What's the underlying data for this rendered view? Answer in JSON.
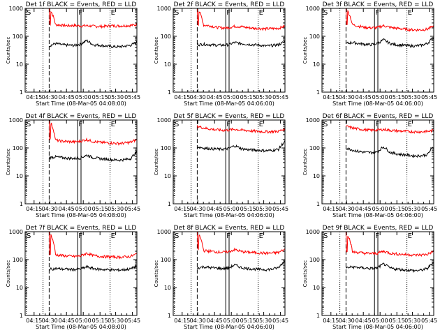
{
  "chart_data": [
    {
      "type": "line",
      "title": "Det 1f BLACK = Events, RED = LLD",
      "xlabel": "Start Time (08-Mar-05 04:08:00)",
      "ylabel": "Counts/sec",
      "yscale": "log",
      "ylim": [
        1,
        1000
      ],
      "x_ticks": [
        "04:15",
        "04:30",
        "04:45",
        "05:00",
        "05:15",
        "05:30",
        "05:45"
      ],
      "y_ticks": [
        "1",
        "10",
        "100",
        "1000"
      ],
      "markers": [
        "S",
        "F",
        "E"
      ],
      "series": [
        {
          "color": "#ff0000",
          "values": [
            1000,
            260,
            250,
            240,
            245,
            235,
            240,
            230,
            225,
            230,
            240,
            235,
            240,
            245,
            260
          ]
        },
        {
          "color": "#000000",
          "values": [
            45,
            55,
            50,
            48,
            47,
            52,
            70,
            50,
            48,
            45,
            43,
            42,
            44,
            48,
            60
          ]
        }
      ]
    },
    {
      "type": "line",
      "title": "Det 2f BLACK = Events, RED = LLD",
      "xlabel": "Start Time (08-Mar-05 04:06:00)",
      "ylabel": "Counts/sec",
      "yscale": "log",
      "ylim": [
        1,
        1000
      ],
      "x_ticks": [
        "04:15",
        "04:30",
        "04:45",
        "05:00",
        "05:15",
        "05:30",
        "05:45"
      ],
      "y_ticks": [
        "1",
        "10",
        "100",
        "1000"
      ],
      "markers": [
        "S",
        "F",
        "E"
      ],
      "series": [
        {
          "color": "#ff0000",
          "values": [
            1000,
            250,
            240,
            210,
            200,
            205,
            230,
            220,
            205,
            195,
            190,
            185,
            190,
            195,
            230
          ]
        },
        {
          "color": "#000000",
          "values": [
            50,
            52,
            50,
            48,
            48,
            50,
            60,
            55,
            52,
            50,
            48,
            45,
            47,
            50,
            65
          ]
        }
      ]
    },
    {
      "type": "line",
      "title": "Det 3f BLACK = Events, RED = LLD",
      "xlabel": "Start Time (08-Mar-05 04:06:00)",
      "ylabel": "Counts/sec",
      "yscale": "log",
      "ylim": [
        1,
        1000
      ],
      "x_ticks": [
        "04:15",
        "04:30",
        "04:45",
        "05:00",
        "05:15",
        "05:30",
        "05:45"
      ],
      "y_ticks": [
        "1",
        "10",
        "100",
        "1000"
      ],
      "markers": [
        "S",
        "F",
        "E"
      ],
      "series": [
        {
          "color": "#ff0000",
          "values": [
            1000,
            260,
            230,
            210,
            200,
            205,
            240,
            210,
            195,
            185,
            175,
            170,
            170,
            180,
            230
          ]
        },
        {
          "color": "#000000",
          "values": [
            55,
            60,
            55,
            52,
            50,
            55,
            75,
            55,
            50,
            48,
            46,
            45,
            48,
            55,
            90
          ]
        }
      ]
    },
    {
      "type": "line",
      "title": "Det 4f BLACK = Events, RED = LLD",
      "xlabel": "Start Time (08-Mar-05 04:08:00)",
      "ylabel": "Counts/sec",
      "yscale": "log",
      "ylim": [
        1,
        1000
      ],
      "x_ticks": [
        "04:15",
        "04:30",
        "04:45",
        "05:00",
        "05:15",
        "05:30",
        "05:45"
      ],
      "y_ticks": [
        "1",
        "10",
        "100",
        "1000"
      ],
      "markers": [
        "S",
        "F",
        "E"
      ],
      "series": [
        {
          "color": "#ff0000",
          "values": [
            1000,
            190,
            175,
            170,
            165,
            175,
            200,
            170,
            160,
            155,
            150,
            145,
            150,
            160,
            200
          ]
        },
        {
          "color": "#000000",
          "values": [
            45,
            48,
            45,
            43,
            42,
            44,
            55,
            45,
            42,
            40,
            38,
            37,
            38,
            42,
            70
          ]
        }
      ]
    },
    {
      "type": "line",
      "title": "Det 5f BLACK = Events, RED = LLD",
      "xlabel": "Start Time (08-Mar-05 04:06:00)",
      "ylabel": "Counts/sec",
      "yscale": "log",
      "ylim": [
        1,
        1000
      ],
      "x_ticks": [
        "04:15",
        "04:30",
        "04:45",
        "05:00",
        "05:15",
        "05:30",
        "05:45"
      ],
      "y_ticks": [
        "1",
        "10",
        "100",
        "1000"
      ],
      "markers": [
        "S",
        "F",
        "E"
      ],
      "series": [
        {
          "color": "#ff0000",
          "values": [
            600,
            520,
            480,
            450,
            430,
            440,
            470,
            440,
            420,
            400,
            390,
            380,
            385,
            400,
            480
          ]
        },
        {
          "color": "#000000",
          "values": [
            110,
            100,
            95,
            92,
            90,
            95,
            120,
            95,
            88,
            85,
            82,
            80,
            82,
            90,
            170
          ]
        }
      ]
    },
    {
      "type": "line",
      "title": "Det 6f BLACK = Events, RED = LLD",
      "xlabel": "Start Time (08-Mar-05 04:06:00)",
      "ylabel": "Counts/sec",
      "yscale": "log",
      "ylim": [
        1,
        1000
      ],
      "x_ticks": [
        "04:15",
        "04:30",
        "04:45",
        "05:00",
        "05:15",
        "05:30",
        "05:45"
      ],
      "y_ticks": [
        "1",
        "10",
        "100",
        "1000"
      ],
      "markers": [
        "S",
        "F",
        "E"
      ],
      "series": [
        {
          "color": "#ff0000",
          "values": [
            600,
            520,
            480,
            450,
            430,
            440,
            460,
            430,
            410,
            400,
            390,
            380,
            380,
            390,
            430
          ]
        },
        {
          "color": "#000000",
          "values": [
            100,
            85,
            75,
            70,
            68,
            72,
            110,
            70,
            62,
            58,
            55,
            52,
            53,
            58,
            110
          ]
        }
      ]
    },
    {
      "type": "line",
      "title": "Det 7f BLACK = Events, RED = LLD",
      "xlabel": "Start Time (08-Mar-05 04:08:00)",
      "ylabel": "Counts/sec",
      "yscale": "log",
      "ylim": [
        1,
        1000
      ],
      "x_ticks": [
        "04:15",
        "04:30",
        "04:45",
        "05:00",
        "05:15",
        "05:30",
        "05:45"
      ],
      "y_ticks": [
        "1",
        "10",
        "100",
        "1000"
      ],
      "markers": [
        "S",
        "F",
        "E"
      ],
      "series": [
        {
          "color": "#ff0000",
          "values": [
            1000,
            150,
            140,
            135,
            130,
            135,
            170,
            140,
            132,
            128,
            125,
            122,
            125,
            130,
            160
          ]
        },
        {
          "color": "#000000",
          "values": [
            45,
            48,
            46,
            45,
            44,
            46,
            55,
            48,
            45,
            44,
            43,
            42,
            44,
            46,
            60
          ]
        }
      ]
    },
    {
      "type": "line",
      "title": "Det 8f BLACK = Events, RED = LLD",
      "xlabel": "Start Time (08-Mar-05 04:06:00)",
      "ylabel": "Counts/sec",
      "yscale": "log",
      "ylim": [
        1,
        1000
      ],
      "x_ticks": [
        "04:15",
        "04:30",
        "04:45",
        "05:00",
        "05:15",
        "05:30",
        "05:45"
      ],
      "y_ticks": [
        "1",
        "10",
        "100",
        "1000"
      ],
      "markers": [
        "S",
        "F",
        "E"
      ],
      "series": [
        {
          "color": "#ff0000",
          "values": [
            1000,
            210,
            200,
            190,
            185,
            190,
            230,
            195,
            185,
            180,
            175,
            170,
            172,
            180,
            230
          ]
        },
        {
          "color": "#000000",
          "values": [
            50,
            55,
            52,
            50,
            48,
            50,
            65,
            52,
            48,
            46,
            45,
            44,
            46,
            52,
            90
          ]
        }
      ]
    },
    {
      "type": "line",
      "title": "Det 9f BLACK = Events, RED = LLD",
      "xlabel": "Start Time (08-Mar-05 04:06:00)",
      "ylabel": "Counts/sec",
      "yscale": "log",
      "ylim": [
        1,
        1000
      ],
      "x_ticks": [
        "04:15",
        "04:30",
        "04:45",
        "05:00",
        "05:15",
        "05:30",
        "05:45"
      ],
      "y_ticks": [
        "1",
        "10",
        "100",
        "1000"
      ],
      "markers": [
        "S",
        "F",
        "E"
      ],
      "series": [
        {
          "color": "#ff0000",
          "values": [
            1000,
            190,
            180,
            170,
            165,
            170,
            200,
            170,
            160,
            155,
            150,
            145,
            148,
            155,
            200
          ]
        },
        {
          "color": "#000000",
          "values": [
            50,
            55,
            52,
            50,
            48,
            50,
            70,
            50,
            46,
            44,
            42,
            40,
            42,
            48,
            80
          ]
        }
      ]
    }
  ]
}
